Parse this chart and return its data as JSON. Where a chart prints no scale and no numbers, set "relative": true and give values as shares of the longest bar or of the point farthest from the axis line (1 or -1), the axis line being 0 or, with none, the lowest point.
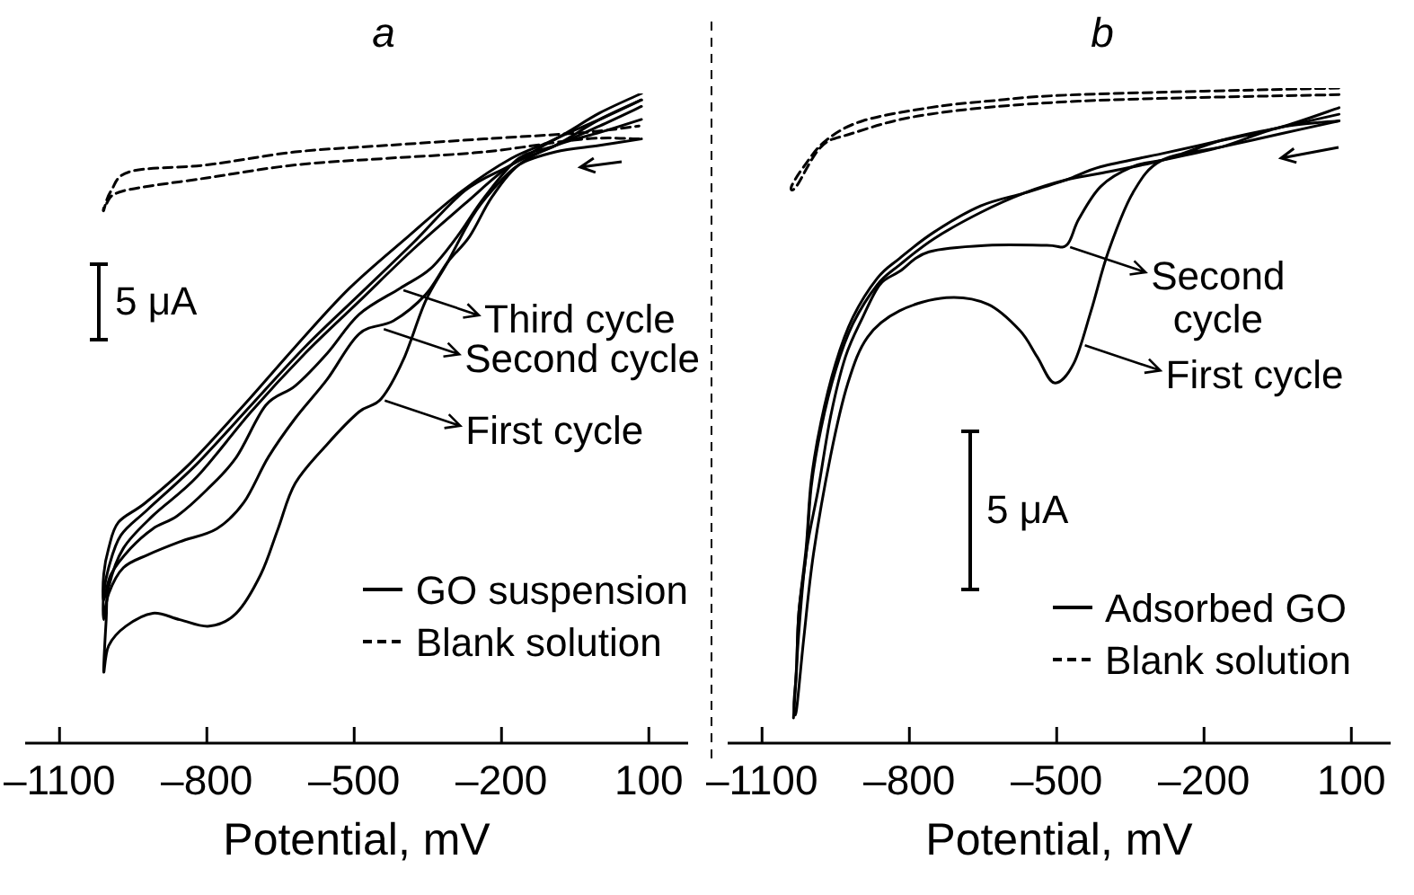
{
  "chart_data": [
    {
      "type": "line",
      "title": "a",
      "xlabel": "Potential, mV",
      "relative": true,
      "xlim": [
        -1170,
        180
      ],
      "xticks": [
        {
          "value": -1100,
          "label": "–1100"
        },
        {
          "value": -800,
          "label": "–800"
        },
        {
          "value": -500,
          "label": "–500"
        },
        {
          "value": -200,
          "label": "–200"
        },
        100
      ],
      "legend": "bottom right",
      "series": [
        {
          "name": "GO suspension",
          "color": "#000000",
          "line_style": "solid",
          "x": [
            85,
            0,
            -90,
            -165,
            -220,
            -260,
            -310,
            -355,
            -400,
            -445,
            -490,
            -555,
            -620,
            -655,
            -690,
            -740,
            -795,
            -855,
            -910,
            -965,
            -1000,
            -1010,
            -1005,
            -1000,
            -970,
            -910,
            -820,
            -710,
            -600,
            -490,
            -380,
            -275,
            -180,
            -90,
            0,
            85
          ],
          "values": [
            0.93,
            0.92,
            0.91,
            0.89,
            0.85,
            0.81,
            0.74,
            0.68,
            0.59,
            0.53,
            0.51,
            0.46,
            0.4,
            0.33,
            0.26,
            0.2,
            0.18,
            0.19,
            0.2,
            0.18,
            0.15,
            0.11,
            0.19,
            0.24,
            0.3,
            0.35,
            0.41,
            0.51,
            0.6,
            0.68,
            0.76,
            0.83,
            0.89,
            0.92,
            0.96,
            0.99
          ]
        },
        {
          "color": "#000000",
          "line_style": "solid",
          "x": [
            85,
            0,
            -90,
            -165,
            -220,
            -265,
            -310,
            -355,
            -420,
            -490,
            -555,
            -620,
            -675,
            -725,
            -780,
            -855,
            -920,
            -970,
            -1000,
            -1010,
            -1010,
            -1000,
            -975,
            -920,
            -820,
            -710,
            -600,
            -490,
            -380,
            -275,
            -180,
            -90,
            0,
            85
          ],
          "values": [
            0.96,
            0.94,
            0.92,
            0.89,
            0.84,
            0.78,
            0.74,
            0.69,
            0.65,
            0.63,
            0.56,
            0.5,
            0.44,
            0.37,
            0.33,
            0.31,
            0.29,
            0.27,
            0.23,
            0.19,
            0.23,
            0.27,
            0.32,
            0.36,
            0.43,
            0.52,
            0.61,
            0.69,
            0.77,
            0.85,
            0.89,
            0.93,
            0.96,
            0.99
          ]
        },
        {
          "color": "#000000",
          "line_style": "solid",
          "x": [
            85,
            0,
            -90,
            -165,
            -235,
            -290,
            -345,
            -407,
            -490,
            -555,
            -620,
            -680,
            -740,
            -800,
            -860,
            -910,
            -955,
            -995,
            -1010,
            -1010,
            -1000,
            -980,
            -925,
            -835,
            -725,
            -620,
            -510,
            -390,
            -280,
            -180,
            -90,
            0,
            85
          ],
          "values": [
            0.98,
            0.95,
            0.92,
            0.9,
            0.84,
            0.78,
            0.73,
            0.7,
            0.66,
            0.6,
            0.55,
            0.52,
            0.44,
            0.39,
            0.35,
            0.33,
            0.3,
            0.26,
            0.22,
            0.26,
            0.3,
            0.34,
            0.37,
            0.43,
            0.52,
            0.61,
            0.7,
            0.78,
            0.85,
            0.9,
            0.93,
            0.97,
            1.0
          ]
        },
        {
          "name": "Blank solution",
          "color": "#000000",
          "line_style": "dashed",
          "x": [
            80,
            -30,
            -235,
            -435,
            -620,
            -800,
            -970,
            -1005,
            -1010,
            -995,
            -955,
            -800,
            -620,
            -435,
            -235,
            -30,
            80
          ],
          "values": [
            0.93,
            0.93,
            0.91,
            0.9,
            0.89,
            0.87,
            0.85,
            0.83,
            0.82,
            0.85,
            0.88,
            0.89,
            0.91,
            0.92,
            0.93,
            0.94,
            0.95
          ]
        }
      ],
      "annotations": [
        "5 μA",
        {
          "text": "Third cycle",
          "x": -407,
          "y": 0.7
        },
        {
          "text": "Second cycle",
          "x": -447,
          "y": 0.64
        },
        {
          "text": "First cycle",
          "x": -445,
          "y": 0.53
        }
      ]
    },
    {
      "type": "line",
      "title": "b",
      "xlabel": "Potential, mV",
      "relative": true,
      "xlim": [
        -1170,
        180
      ],
      "xticks": [
        {
          "value": -1100,
          "label": "–1100"
        },
        {
          "value": -800,
          "label": "–800"
        },
        {
          "value": -500,
          "label": "–500"
        },
        {
          "value": -200,
          "label": "–200"
        },
        100
      ],
      "legend": "bottom right",
      "series": [
        {
          "name": "Adsorbed GO",
          "color": "#000000",
          "line_style": "solid",
          "x": [
            75,
            -45,
            -165,
            -285,
            -345,
            -395,
            -430,
            -465,
            -505,
            -540,
            -575,
            -640,
            -725,
            -820,
            -885,
            -925,
            -960,
            -995,
            -1015,
            -1030,
            -1035,
            -1030,
            -1025,
            -1010,
            -1000,
            -980,
            -950,
            -915,
            -865,
            -820,
            -750,
            -655,
            -565,
            -480,
            -410,
            -285,
            -165,
            -45,
            75
          ],
          "values": [
            0.95,
            0.93,
            0.91,
            0.89,
            0.84,
            0.75,
            0.66,
            0.58,
            0.55,
            0.59,
            0.63,
            0.67,
            0.68,
            0.66,
            0.62,
            0.55,
            0.44,
            0.29,
            0.16,
            0.05,
            0.06,
            0.11,
            0.2,
            0.29,
            0.39,
            0.48,
            0.57,
            0.64,
            0.7,
            0.73,
            0.77,
            0.81,
            0.84,
            0.86,
            0.87,
            0.89,
            0.92,
            0.94,
            0.96
          ]
        },
        {
          "color": "#000000",
          "line_style": "solid",
          "x": [
            75,
            -45,
            -165,
            -285,
            -345,
            -410,
            -455,
            -480,
            -520,
            -640,
            -760,
            -820,
            -860,
            -895,
            -930,
            -960,
            -985,
            -1010,
            -1025,
            -1035,
            -1035,
            -1030,
            -1025,
            -1010,
            -1000,
            -980,
            -950,
            -915,
            -865,
            -820,
            -750,
            -655,
            -565,
            -480,
            -410,
            -285,
            -165,
            -45,
            75
          ],
          "values": [
            0.95,
            0.94,
            0.91,
            0.89,
            0.88,
            0.85,
            0.8,
            0.76,
            0.76,
            0.76,
            0.75,
            0.72,
            0.7,
            0.65,
            0.59,
            0.5,
            0.39,
            0.29,
            0.17,
            0.05,
            0.05,
            0.11,
            0.2,
            0.3,
            0.4,
            0.49,
            0.58,
            0.65,
            0.71,
            0.74,
            0.78,
            0.82,
            0.84,
            0.86,
            0.88,
            0.9,
            0.92,
            0.94,
            0.97
          ]
        },
        {
          "name": "Blank solution",
          "color": "#000000",
          "line_style": "dashed",
          "x": [
            75,
            -455,
            -760,
            -920,
            -980,
            -1030,
            -1040,
            -1015,
            -970,
            -895,
            -760,
            -640,
            -455,
            75
          ],
          "values": [
            0.99,
            0.98,
            0.96,
            0.93,
            0.91,
            0.85,
            0.85,
            0.88,
            0.92,
            0.95,
            0.97,
            0.98,
            0.99,
            1.0
          ]
        }
      ],
      "annotations": [
        "5 μA",
        {
          "text": "Second\ncycle",
          "x": -480,
          "y": 0.76
        },
        {
          "text": "First cycle",
          "x": -450,
          "y": 0.61
        }
      ]
    }
  ]
}
